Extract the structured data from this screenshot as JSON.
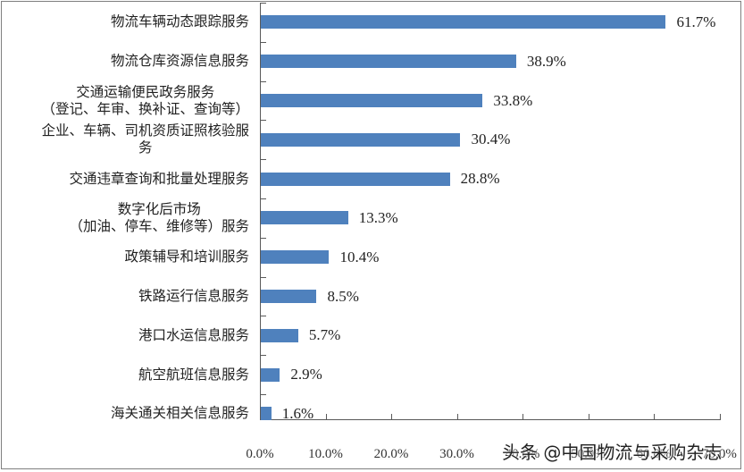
{
  "chart_data": {
    "type": "bar",
    "orientation": "horizontal",
    "title": "",
    "xlabel": "",
    "ylabel": "",
    "xlim": [
      0,
      70
    ],
    "grid": false,
    "legend": null,
    "categories": [
      "物流车辆动态跟踪服务",
      "物流仓库资源信息服务",
      "交通运输便民政务服务（登记、年审、换补证、查询等）",
      "企业、车辆、司机资质证照核验服务",
      "交通违章查询和批量处理服务",
      "数字化后市场（加油、停车、维修等）服务",
      "政策辅导和培训服务",
      "铁路运行信息服务",
      "港口水运信息服务",
      "航空航班信息服务",
      "海关通关相关信息服务"
    ],
    "values": [
      61.7,
      38.9,
      33.8,
      30.4,
      28.8,
      13.3,
      10.4,
      8.5,
      5.7,
      2.9,
      1.6
    ],
    "value_labels": [
      "61.7%",
      "38.9%",
      "33.8%",
      "30.4%",
      "28.8%",
      "13.3%",
      "10.4%",
      "8.5%",
      "5.7%",
      "2.9%",
      "1.6%"
    ],
    "x_tick_labels": [
      "0.0%",
      "10.0%",
      "20.0%",
      "30.0%",
      "40.0%",
      "50.0%",
      "60.0%",
      "70.0%"
    ],
    "bar_color": "#4f81bd"
  },
  "labels": {
    "c0": [
      "物流车辆动态跟踪服务"
    ],
    "c1": [
      "物流仓库资源信息服务"
    ],
    "c2": [
      "交通运输便民政务服务",
      "（登记、年审、换补证、查询等）"
    ],
    "c3": [
      "企业、车辆、司机资质证照核验服",
      "务"
    ],
    "c4": [
      "交通违章查询和批量处理服务"
    ],
    "c5": [
      "数字化后市场",
      "（加油、停车、维修等）服务"
    ],
    "c6": [
      "政策辅导和培训服务"
    ],
    "c7": [
      "铁路运行信息服务"
    ],
    "c8": [
      "港口水运信息服务"
    ],
    "c9": [
      "航空航班信息服务"
    ],
    "c10": [
      "海关通关相关信息服务"
    ]
  },
  "watermark": "头条 @中国物流与采购杂志"
}
